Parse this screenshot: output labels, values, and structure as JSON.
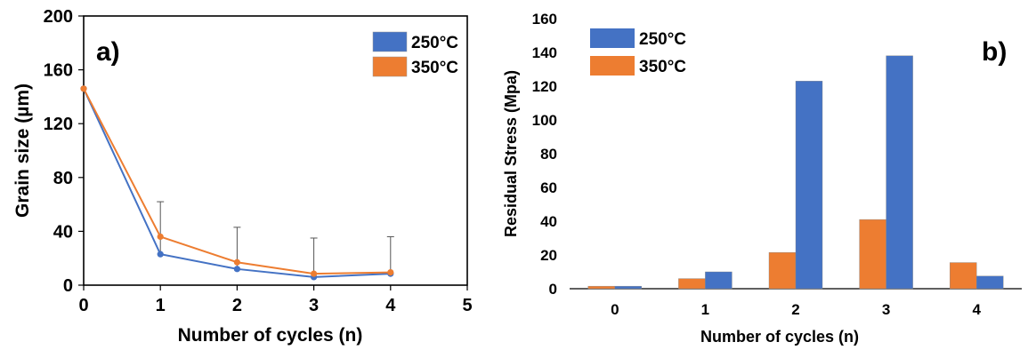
{
  "chart_data": [
    {
      "type": "line",
      "panel_label": "a)",
      "title": "",
      "xlabel": "Number of cycles (n)",
      "ylabel": "Grain size (µm)",
      "xlim": [
        0,
        5
      ],
      "ylim": [
        0,
        200
      ],
      "xticks": [
        0,
        1,
        2,
        3,
        4,
        5
      ],
      "yticks": [
        0,
        40,
        80,
        120,
        160,
        200
      ],
      "grid": false,
      "legend_position": "top-right",
      "x": [
        0,
        1,
        2,
        3,
        4
      ],
      "series": [
        {
          "name": "250°C",
          "color": "#4472C4",
          "values": [
            146,
            23,
            12,
            6,
            8.5
          ],
          "error_upper": [
            0,
            39,
            31,
            29,
            27.5
          ]
        },
        {
          "name": "350°C",
          "color": "#ED7D31",
          "values": [
            146,
            36,
            17,
            8.5,
            9.5
          ]
        }
      ]
    },
    {
      "type": "bar",
      "panel_label": "b)",
      "title": "",
      "xlabel": "Number of cycles (n)",
      "ylabel": "Residual Stress (Mpa)",
      "ylim": [
        0,
        160
      ],
      "yticks": [
        0,
        20,
        40,
        60,
        80,
        100,
        120,
        140,
        160
      ],
      "grid": false,
      "legend_position": "top-left",
      "categories": [
        "0",
        "1",
        "2",
        "3",
        "4"
      ],
      "series": [
        {
          "name": "350°C",
          "color": "#ED7D31",
          "values": [
            1.5,
            6,
            21.5,
            41,
            15.5
          ]
        },
        {
          "name": "250°C",
          "color": "#4472C4",
          "values": [
            1.5,
            10,
            123,
            138,
            7.5
          ]
        }
      ],
      "legend_order": [
        "250°C",
        "350°C"
      ]
    }
  ]
}
